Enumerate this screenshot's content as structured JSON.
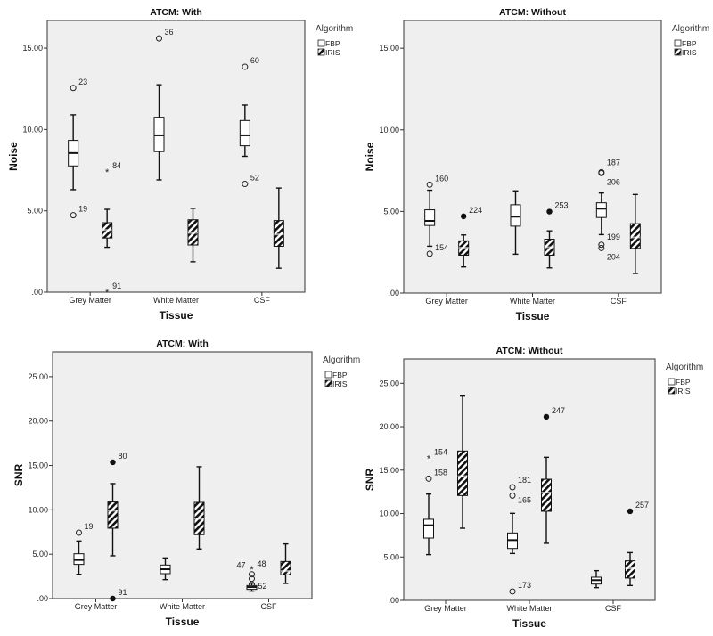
{
  "chart_data": [
    {
      "type": "boxplot",
      "title": "ATCM: With",
      "xlabel": "Tissue",
      "ylabel": "Noise",
      "ylim": [
        0,
        16.7
      ],
      "yticks": [
        {
          "value": 0,
          "label": ".00"
        },
        {
          "value": 5,
          "label": "5.00"
        },
        {
          "value": 10,
          "label": "10.00"
        },
        {
          "value": 15,
          "label": "15.00"
        }
      ],
      "categories": [
        "Grey Matter",
        "White Matter",
        "CSF"
      ],
      "legend": {
        "title": "Algorithm",
        "items": [
          "FBP",
          "IRIS"
        ],
        "position": "right"
      },
      "boxes": [
        {
          "category": 0,
          "algorithm": "FBP",
          "whisker_low": 6.3,
          "q1": 7.76,
          "median": 8.55,
          "q3": 9.33,
          "whisker_high": 10.9,
          "outliers": [
            {
              "value": 12.55,
              "marker": "circle",
              "label": "23"
            },
            {
              "value": 4.73,
              "marker": "circle",
              "label": "19"
            }
          ]
        },
        {
          "category": 0,
          "algorithm": "IRIS",
          "whisker_low": 2.76,
          "q1": 3.33,
          "median": 3.82,
          "q3": 4.27,
          "whisker_high": 5.09,
          "outliers": [
            {
              "value": 7.4,
              "marker": "star",
              "label": "84"
            },
            {
              "value": 0,
              "marker": "star",
              "label": "91"
            }
          ]
        },
        {
          "category": 1,
          "algorithm": "FBP",
          "whisker_low": 6.9,
          "q1": 8.64,
          "median": 9.64,
          "q3": 10.75,
          "whisker_high": 12.75,
          "outliers": [
            {
              "value": 15.6,
              "marker": "circle",
              "label": "36"
            }
          ]
        },
        {
          "category": 1,
          "algorithm": "IRIS",
          "whisker_low": 1.87,
          "q1": 2.9,
          "median": 3.64,
          "q3": 4.45,
          "whisker_high": 5.15,
          "outliers": []
        },
        {
          "category": 2,
          "algorithm": "FBP",
          "whisker_low": 8.35,
          "q1": 9.0,
          "median": 9.64,
          "q3": 10.55,
          "whisker_high": 11.5,
          "outliers": [
            {
              "value": 13.85,
              "marker": "circle",
              "label": "60"
            },
            {
              "value": 6.65,
              "marker": "circle",
              "label": "52"
            }
          ]
        },
        {
          "category": 2,
          "algorithm": "IRIS",
          "whisker_low": 1.47,
          "q1": 2.82,
          "median": 3.55,
          "q3": 4.4,
          "whisker_high": 6.4,
          "outliers": []
        }
      ]
    },
    {
      "type": "boxplot",
      "title": "ATCM: Without",
      "xlabel": "Tissue",
      "ylabel": "Noise",
      "ylim": [
        0,
        16.7
      ],
      "yticks": [
        {
          "value": 0,
          "label": ".00"
        },
        {
          "value": 5,
          "label": "5.00"
        },
        {
          "value": 10,
          "label": "10.00"
        },
        {
          "value": 15,
          "label": "15.00"
        }
      ],
      "categories": [
        "Grey Matter",
        "White Matter",
        "CSF"
      ],
      "legend": {
        "title": "Algorithm",
        "items": [
          "FBP",
          "IRIS"
        ],
        "position": "right"
      },
      "boxes": [
        {
          "category": 0,
          "algorithm": "FBP",
          "whisker_low": 2.87,
          "q1": 4.14,
          "median": 4.42,
          "q3": 5.1,
          "whisker_high": 6.3,
          "outliers": [
            {
              "value": 6.64,
              "marker": "circle",
              "label": "160"
            },
            {
              "value": 2.41,
              "marker": "circle",
              "label": "154"
            }
          ]
        },
        {
          "category": 0,
          "algorithm": "IRIS",
          "whisker_low": 1.6,
          "q1": 2.32,
          "median": 2.78,
          "q3": 3.2,
          "whisker_high": 3.56,
          "outliers": [
            {
              "value": 4.7,
              "marker": "filled",
              "label": "224"
            }
          ]
        },
        {
          "category": 1,
          "algorithm": "FBP",
          "whisker_low": 2.38,
          "q1": 4.1,
          "median": 4.68,
          "q3": 5.41,
          "whisker_high": 6.26,
          "outliers": []
        },
        {
          "category": 1,
          "algorithm": "IRIS",
          "whisker_low": 1.54,
          "q1": 2.32,
          "median": 2.81,
          "q3": 3.3,
          "whisker_high": 3.81,
          "outliers": [
            {
              "value": 4.99,
              "marker": "filled",
              "label": "253"
            }
          ]
        },
        {
          "category": 2,
          "algorithm": "FBP",
          "whisker_low": 3.58,
          "q1": 4.63,
          "median": 5.17,
          "q3": 5.53,
          "whisker_high": 6.13,
          "outliers": [
            {
              "value": 7.4,
              "marker": "circle",
              "label": "187"
            },
            {
              "value": 7.35,
              "marker": "circle",
              "label": "206"
            },
            {
              "value": 2.96,
              "marker": "circle",
              "label": "199"
            },
            {
              "value": 2.76,
              "marker": "circle",
              "label": "204"
            }
          ]
        },
        {
          "category": 2,
          "algorithm": "IRIS",
          "whisker_low": 1.2,
          "q1": 2.74,
          "median": 3.41,
          "q3": 4.25,
          "whisker_high": 6.04,
          "outliers": []
        }
      ]
    },
    {
      "type": "boxplot",
      "title": "ATCM: With",
      "xlabel": "Tissue",
      "ylabel": "SNR",
      "ylim": [
        0,
        27.8
      ],
      "yticks": [
        {
          "value": 0,
          "label": ".00"
        },
        {
          "value": 5,
          "label": "5.00"
        },
        {
          "value": 10,
          "label": "10.00"
        },
        {
          "value": 15,
          "label": "15.00"
        },
        {
          "value": 20,
          "label": "20.00"
        },
        {
          "value": 25,
          "label": "25.00"
        }
      ],
      "categories": [
        "Grey Matter",
        "White Matter",
        "CSF"
      ],
      "legend": {
        "title": "Algorithm",
        "items": [
          "FBP",
          "IRIS"
        ],
        "position": "right"
      },
      "boxes": [
        {
          "category": 0,
          "algorithm": "FBP",
          "whisker_low": 2.74,
          "q1": 3.85,
          "median": 4.35,
          "q3": 5.05,
          "whisker_high": 6.49,
          "outliers": [
            {
              "value": 7.43,
              "marker": "circle",
              "label": "19"
            }
          ]
        },
        {
          "category": 0,
          "algorithm": "IRIS",
          "whisker_low": 4.82,
          "q1": 7.93,
          "median": 9.9,
          "q3": 10.88,
          "whisker_high": 12.95,
          "outliers": [
            {
              "value": 15.36,
              "marker": "filled",
              "label": "80"
            },
            {
              "value": 0,
              "marker": "filled",
              "label": "91"
            }
          ]
        },
        {
          "category": 1,
          "algorithm": "FBP",
          "whisker_low": 2.14,
          "q1": 2.81,
          "median": 3.31,
          "q3": 3.78,
          "whisker_high": 4.58,
          "outliers": []
        },
        {
          "category": 1,
          "algorithm": "IRIS",
          "whisker_low": 5.59,
          "q1": 7.2,
          "median": 9.0,
          "q3": 10.84,
          "whisker_high": 14.86,
          "outliers": []
        },
        {
          "category": 2,
          "algorithm": "FBP",
          "whisker_low": 0.84,
          "q1": 1.04,
          "median": 1.3,
          "q3": 1.47,
          "whisker_high": 1.74,
          "outliers": [
            {
              "value": 3.3,
              "marker": "star",
              "label": "48"
            },
            {
              "value": 2.74,
              "marker": "circle",
              "label": "47"
            },
            {
              "value": 2.24,
              "marker": "circle",
              "label": ""
            },
            {
              "value": 1.6,
              "marker": "circle",
              "label": "52"
            }
          ]
        },
        {
          "category": 2,
          "algorithm": "IRIS",
          "whisker_low": 1.71,
          "q1": 2.68,
          "median": 3.1,
          "q3": 4.18,
          "whisker_high": 6.16,
          "outliers": []
        }
      ]
    },
    {
      "type": "boxplot",
      "title": "ATCM: Without",
      "xlabel": "Tissue",
      "ylabel": "SNR",
      "ylim": [
        0,
        27.8
      ],
      "yticks": [
        {
          "value": 0,
          "label": ".00"
        },
        {
          "value": 5,
          "label": "5.00"
        },
        {
          "value": 10,
          "label": "10.00"
        },
        {
          "value": 15,
          "label": "15.00"
        },
        {
          "value": 20,
          "label": "20.00"
        },
        {
          "value": 25,
          "label": "25.00"
        }
      ],
      "categories": [
        "Grey Matter",
        "White Matter",
        "CSF"
      ],
      "legend": {
        "title": "Algorithm",
        "items": [
          "FBP",
          "IRIS"
        ],
        "position": "right"
      },
      "boxes": [
        {
          "category": 0,
          "algorithm": "FBP",
          "whisker_low": 5.27,
          "q1": 7.18,
          "median": 8.65,
          "q3": 9.34,
          "whisker_high": 12.24,
          "outliers": [
            {
              "value": 16.35,
              "marker": "star",
              "label": "154"
            },
            {
              "value": 14.02,
              "marker": "circle",
              "label": "158"
            }
          ]
        },
        {
          "category": 0,
          "algorithm": "IRIS",
          "whisker_low": 8.31,
          "q1": 12.07,
          "median": 14.3,
          "q3": 17.2,
          "whisker_high": 23.53,
          "outliers": []
        },
        {
          "category": 1,
          "algorithm": "FBP",
          "whisker_low": 5.4,
          "q1": 5.98,
          "median": 6.94,
          "q3": 7.76,
          "whisker_high": 10.02,
          "outliers": [
            {
              "value": 13.03,
              "marker": "circle",
              "label": "181"
            },
            {
              "value": 12.07,
              "marker": "circle",
              "label": "165"
            },
            {
              "value": 1.03,
              "marker": "circle",
              "label": "173"
            }
          ]
        },
        {
          "category": 1,
          "algorithm": "IRIS",
          "whisker_low": 6.57,
          "q1": 10.26,
          "median": 12.41,
          "q3": 13.95,
          "whisker_high": 16.48,
          "outliers": [
            {
              "value": 21.14,
              "marker": "filled",
              "label": "247"
            }
          ]
        },
        {
          "category": 2,
          "algorithm": "FBP",
          "whisker_low": 1.47,
          "q1": 1.88,
          "median": 2.33,
          "q3": 2.67,
          "whisker_high": 3.42,
          "outliers": []
        },
        {
          "category": 2,
          "algorithm": "IRIS",
          "whisker_low": 1.71,
          "q1": 2.57,
          "median": 3.69,
          "q3": 4.55,
          "whisker_high": 5.5,
          "outliers": [
            {
              "value": 10.26,
              "marker": "filled",
              "label": "257"
            }
          ]
        }
      ]
    }
  ],
  "colors": {
    "plot_bg": "#efefef",
    "frame": "#555555",
    "ink": "#111111"
  }
}
